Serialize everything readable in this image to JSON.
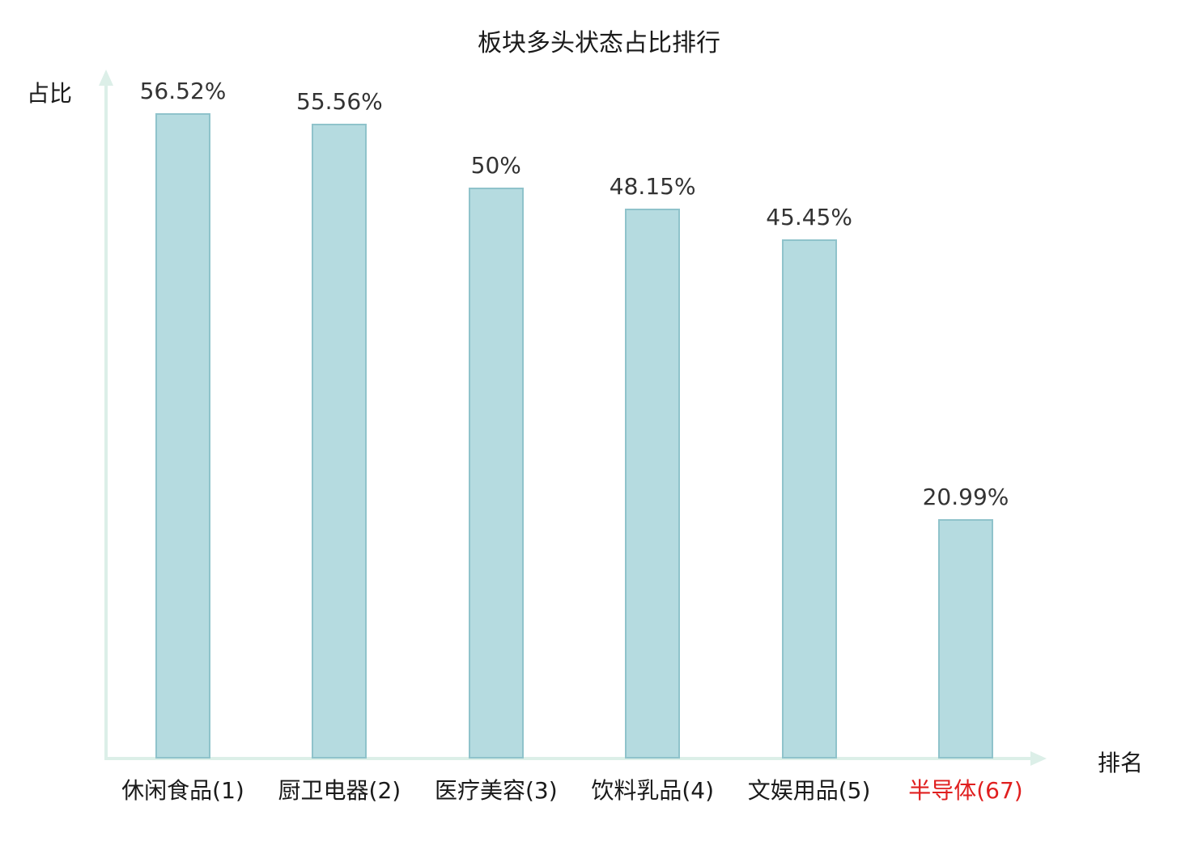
{
  "chart_data": {
    "type": "bar",
    "title": "板块多头状态占比排行",
    "xlabel": "排名",
    "ylabel": "占比",
    "categories": [
      "休闲食品(1)",
      "厨卫电器(2)",
      "医疗美容(3)",
      "饮料乳品(4)",
      "文娱用品(5)",
      "半导体(67)"
    ],
    "values": [
      56.52,
      55.56,
      50,
      48.15,
      45.45,
      20.99
    ],
    "value_labels": [
      "56.52%",
      "55.56%",
      "50%",
      "48.15%",
      "45.45%",
      "20.99%"
    ],
    "category_colors": [
      "#1a1a1a",
      "#1a1a1a",
      "#1a1a1a",
      "#1a1a1a",
      "#1a1a1a",
      "#e01f1f"
    ],
    "bar_fill": "#b5dbe0",
    "bar_border": "#8fc3cb",
    "axis_color": "#dcefe8",
    "legend": "none",
    "grid": false,
    "ylim": [
      0,
      60
    ]
  }
}
